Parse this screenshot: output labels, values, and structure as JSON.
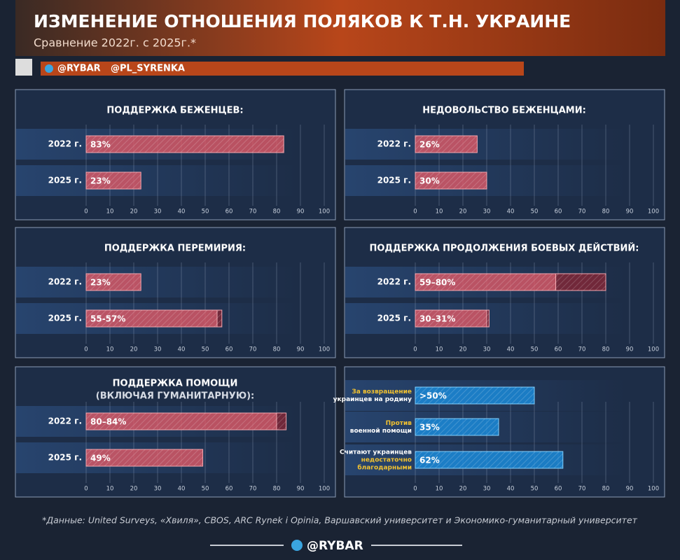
{
  "header": {
    "title": "ИЗМЕНЕНИЕ ОТНОШЕНИЯ ПОЛЯКОВ К Т.Н. УКРАИНЕ",
    "subtitle": "Сравнение 2022г. с 2025г.*",
    "handles": [
      "@RYBAR",
      "@PL_SYRENKA"
    ]
  },
  "chart_data": [
    {
      "type": "bar",
      "title": "ПОДДЕРЖКА БЕЖЕНЦЕВ:",
      "categories": [
        "2022 г.",
        "2025 г."
      ],
      "values": [
        83,
        23
      ],
      "value_labels": [
        "83%",
        "23%"
      ],
      "color": "#e05a66",
      "xlim": [
        0,
        100
      ],
      "xticks": [
        0,
        10,
        20,
        30,
        40,
        50,
        60,
        70,
        80,
        90,
        100
      ]
    },
    {
      "type": "bar",
      "title": "НЕДОВОЛЬСТВО БЕЖЕНЦАМИ:",
      "categories": [
        "2022 г.",
        "2025 г."
      ],
      "values": [
        26,
        30
      ],
      "value_labels": [
        "26%",
        "30%"
      ],
      "color": "#e05a66",
      "xlim": [
        0,
        100
      ],
      "xticks": [
        0,
        10,
        20,
        30,
        40,
        50,
        60,
        70,
        80,
        90,
        100
      ]
    },
    {
      "type": "bar",
      "title": "ПОДДЕРЖКА ПЕРЕМИРИЯ:",
      "categories": [
        "2022 г.",
        "2025 г."
      ],
      "values": [
        23,
        [
          55,
          57
        ]
      ],
      "value_labels": [
        "23%",
        "55-57%"
      ],
      "color": "#e05a66",
      "xlim": [
        0,
        100
      ],
      "xticks": [
        0,
        10,
        20,
        30,
        40,
        50,
        60,
        70,
        80,
        90,
        100
      ]
    },
    {
      "type": "bar",
      "title": "ПОДДЕРЖКА ПРОДОЛЖЕНИЯ БОЕВЫХ ДЕЙСТВИЙ:",
      "categories": [
        "2022 г.",
        "2025 г."
      ],
      "values": [
        [
          59,
          80
        ],
        [
          30,
          31
        ]
      ],
      "value_labels": [
        "59–80%",
        "30–31%"
      ],
      "color": "#e05a66",
      "xlim": [
        0,
        100
      ],
      "xticks": [
        0,
        10,
        20,
        30,
        40,
        50,
        60,
        70,
        80,
        90,
        100
      ]
    },
    {
      "type": "bar",
      "title": "ПОДДЕРЖКА ПОМОЩИ",
      "subtitle": "(ВКЛЮЧАЯ ГУМАНИТАРНУЮ):",
      "categories": [
        "2022 г.",
        "2025 г."
      ],
      "values": [
        [
          80,
          84
        ],
        49
      ],
      "value_labels": [
        "80–84%",
        "49%"
      ],
      "color": "#e05a66",
      "xlim": [
        0,
        100
      ],
      "xticks": [
        0,
        10,
        20,
        30,
        40,
        50,
        60,
        70,
        80,
        90,
        100
      ]
    },
    {
      "type": "bar",
      "categories": [
        [
          {
            "text": "За возвращение",
            "accent": true
          },
          {
            "text": "украинцев на родину",
            "accent": false
          }
        ],
        [
          {
            "text": "Против",
            "accent": true
          },
          {
            "text": "военной помощи",
            "accent": false
          }
        ],
        [
          {
            "text": "Считают украинцев",
            "accent": false
          },
          {
            "text": "недостаточно",
            "accent": true
          },
          {
            "text": "благодарными",
            "accent": true
          }
        ]
      ],
      "values": [
        50,
        35,
        62
      ],
      "value_labels": [
        ">50%",
        "35%",
        "62%"
      ],
      "color": "#1a8fe0",
      "xlim": [
        0,
        100
      ],
      "xticks": [
        0,
        10,
        20,
        30,
        40,
        50,
        60,
        70,
        80,
        90,
        100
      ]
    }
  ],
  "footnote": "*Данные: United Surveys, «Хвиля», CBOS, ARC Rynek i Opinia, Варшавский университет и Экономико-гуманитарный университет",
  "footer": "@RYBAR"
}
